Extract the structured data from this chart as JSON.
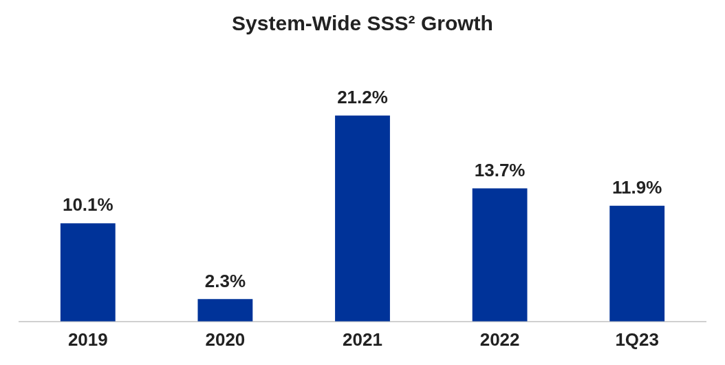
{
  "chart_data": {
    "type": "bar",
    "title": "System-Wide SSS² Growth",
    "categories": [
      "2019",
      "2020",
      "2021",
      "2022",
      "1Q23"
    ],
    "values": [
      10.1,
      2.3,
      21.2,
      13.7,
      11.9
    ],
    "value_labels": [
      "10.1%",
      "2.3%",
      "21.2%",
      "13.7%",
      "11.9%"
    ],
    "color": "#003399",
    "grid": false,
    "legend": false
  }
}
